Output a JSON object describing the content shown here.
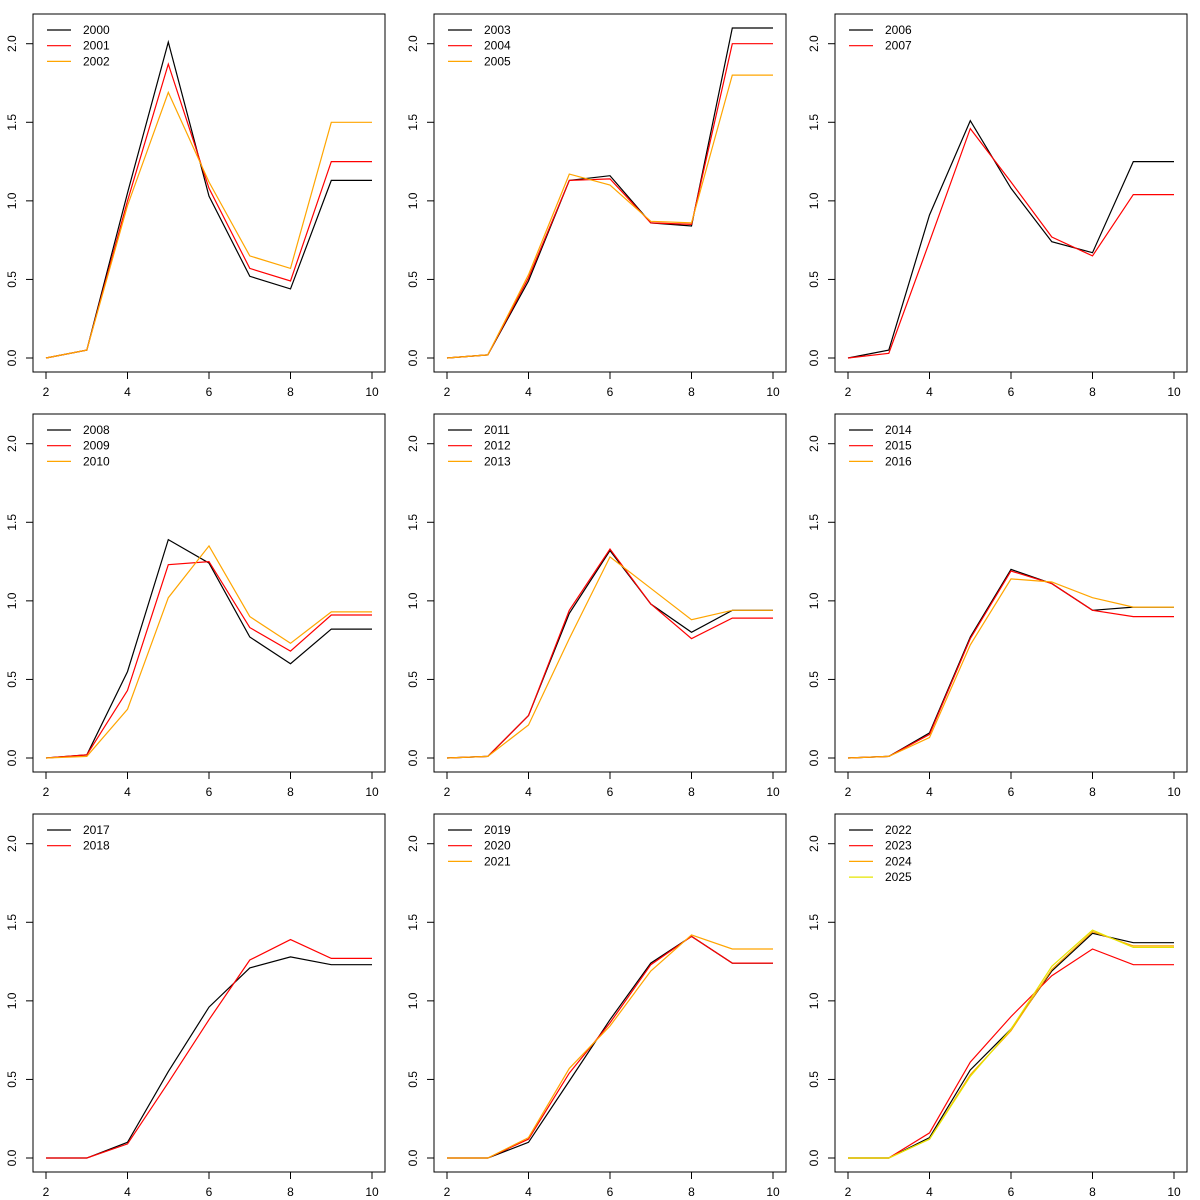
{
  "chart_data": [
    {
      "type": "line",
      "x": [
        2,
        3,
        4,
        5,
        6,
        7,
        8,
        9,
        10
      ],
      "xlim": [
        2,
        10
      ],
      "ylim": [
        0,
        2.1
      ],
      "xticks": [
        "2",
        "4",
        "6",
        "8",
        "10"
      ],
      "yticks": [
        "0.0",
        "0.5",
        "1.0",
        "1.5",
        "2.0"
      ],
      "legend_position": "top-left",
      "series": [
        {
          "name": "2000",
          "color": "#000000",
          "values": [
            0,
            0.05,
            1.05,
            2.01,
            1.03,
            0.52,
            0.44,
            1.13,
            1.13
          ]
        },
        {
          "name": "2001",
          "color": "#ff0000",
          "values": [
            0,
            0.05,
            1.0,
            1.87,
            1.08,
            0.57,
            0.49,
            1.25,
            1.25
          ]
        },
        {
          "name": "2002",
          "color": "#ffa500",
          "values": [
            0,
            0.05,
            0.97,
            1.69,
            1.12,
            0.65,
            0.57,
            1.5,
            1.5
          ]
        }
      ]
    },
    {
      "type": "line",
      "x": [
        2,
        3,
        4,
        5,
        6,
        7,
        8,
        9,
        10
      ],
      "xlim": [
        2,
        10
      ],
      "ylim": [
        0,
        2.1
      ],
      "xticks": [
        "2",
        "4",
        "6",
        "8",
        "10"
      ],
      "yticks": [
        "0.0",
        "0.5",
        "1.0",
        "1.5",
        "2.0"
      ],
      "legend_position": "top-left",
      "series": [
        {
          "name": "2003",
          "color": "#000000",
          "values": [
            0,
            0.02,
            0.49,
            1.13,
            1.16,
            0.86,
            0.84,
            2.1,
            2.1
          ]
        },
        {
          "name": "2004",
          "color": "#ff0000",
          "values": [
            0,
            0.02,
            0.51,
            1.13,
            1.14,
            0.86,
            0.85,
            2.0,
            2.0
          ]
        },
        {
          "name": "2005",
          "color": "#ffa500",
          "values": [
            0,
            0.02,
            0.53,
            1.17,
            1.1,
            0.87,
            0.86,
            1.8,
            1.8
          ]
        }
      ]
    },
    {
      "type": "line",
      "x": [
        2,
        3,
        4,
        5,
        6,
        7,
        8,
        9,
        10
      ],
      "xlim": [
        2,
        10
      ],
      "ylim": [
        0,
        2.1
      ],
      "xticks": [
        "2",
        "4",
        "6",
        "8",
        "10"
      ],
      "yticks": [
        "0.0",
        "0.5",
        "1.0",
        "1.5",
        "2.0"
      ],
      "legend_position": "top-left",
      "series": [
        {
          "name": "2006",
          "color": "#000000",
          "values": [
            0,
            0.05,
            0.91,
            1.51,
            1.08,
            0.74,
            0.67,
            1.25,
            1.25
          ]
        },
        {
          "name": "2007",
          "color": "#ff0000",
          "values": [
            0,
            0.03,
            0.74,
            1.46,
            1.12,
            0.77,
            0.65,
            1.04,
            1.04
          ]
        }
      ]
    },
    {
      "type": "line",
      "x": [
        2,
        3,
        4,
        5,
        6,
        7,
        8,
        9,
        10
      ],
      "xlim": [
        2,
        10
      ],
      "ylim": [
        0,
        2.1
      ],
      "xticks": [
        "2",
        "4",
        "6",
        "8",
        "10"
      ],
      "yticks": [
        "0.0",
        "0.5",
        "1.0",
        "1.5",
        "2.0"
      ],
      "legend_position": "top-left",
      "series": [
        {
          "name": "2008",
          "color": "#000000",
          "values": [
            0,
            0.02,
            0.55,
            1.39,
            1.24,
            0.77,
            0.6,
            0.82,
            0.82
          ]
        },
        {
          "name": "2009",
          "color": "#ff0000",
          "values": [
            0,
            0.02,
            0.43,
            1.23,
            1.25,
            0.83,
            0.68,
            0.91,
            0.91
          ]
        },
        {
          "name": "2010",
          "color": "#ffa500",
          "values": [
            0,
            0.01,
            0.31,
            1.02,
            1.35,
            0.9,
            0.73,
            0.93,
            0.93
          ]
        }
      ]
    },
    {
      "type": "line",
      "x": [
        2,
        3,
        4,
        5,
        6,
        7,
        8,
        9,
        10
      ],
      "xlim": [
        2,
        10
      ],
      "ylim": [
        0,
        2.1
      ],
      "xticks": [
        "2",
        "4",
        "6",
        "8",
        "10"
      ],
      "yticks": [
        "0.0",
        "0.5",
        "1.0",
        "1.5",
        "2.0"
      ],
      "legend_position": "top-left",
      "series": [
        {
          "name": "2011",
          "color": "#000000",
          "values": [
            0,
            0.01,
            0.27,
            0.92,
            1.32,
            0.98,
            0.8,
            0.94,
            0.94
          ]
        },
        {
          "name": "2012",
          "color": "#ff0000",
          "values": [
            0,
            0.01,
            0.27,
            0.94,
            1.33,
            0.98,
            0.76,
            0.89,
            0.89
          ]
        },
        {
          "name": "2013",
          "color": "#ffa500",
          "values": [
            0,
            0.01,
            0.21,
            0.76,
            1.28,
            1.08,
            0.88,
            0.94,
            0.94
          ]
        }
      ]
    },
    {
      "type": "line",
      "x": [
        2,
        3,
        4,
        5,
        6,
        7,
        8,
        9,
        10
      ],
      "xlim": [
        2,
        10
      ],
      "ylim": [
        0,
        2.1
      ],
      "xticks": [
        "2",
        "4",
        "6",
        "8",
        "10"
      ],
      "yticks": [
        "0.0",
        "0.5",
        "1.0",
        "1.5",
        "2.0"
      ],
      "legend_position": "top-left",
      "series": [
        {
          "name": "2014",
          "color": "#000000",
          "values": [
            0,
            0.01,
            0.16,
            0.77,
            1.2,
            1.11,
            0.94,
            0.96,
            0.96
          ]
        },
        {
          "name": "2015",
          "color": "#ff0000",
          "values": [
            0,
            0.01,
            0.15,
            0.76,
            1.19,
            1.11,
            0.94,
            0.9,
            0.9
          ]
        },
        {
          "name": "2016",
          "color": "#ffa500",
          "values": [
            0,
            0.01,
            0.13,
            0.72,
            1.14,
            1.12,
            1.02,
            0.96,
            0.96
          ]
        }
      ]
    },
    {
      "type": "line",
      "x": [
        2,
        3,
        4,
        5,
        6,
        7,
        8,
        9,
        10
      ],
      "xlim": [
        2,
        10
      ],
      "ylim": [
        0,
        2.1
      ],
      "xticks": [
        "2",
        "4",
        "6",
        "8",
        "10"
      ],
      "yticks": [
        "0.0",
        "0.5",
        "1.0",
        "1.5",
        "2.0"
      ],
      "legend_position": "top-left",
      "series": [
        {
          "name": "2017",
          "color": "#000000",
          "values": [
            0,
            0,
            0.1,
            0.55,
            0.96,
            1.21,
            1.28,
            1.23,
            1.23
          ]
        },
        {
          "name": "2018",
          "color": "#ff0000",
          "values": [
            0,
            0,
            0.09,
            0.48,
            0.88,
            1.26,
            1.39,
            1.27,
            1.27
          ]
        }
      ]
    },
    {
      "type": "line",
      "x": [
        2,
        3,
        4,
        5,
        6,
        7,
        8,
        9,
        10
      ],
      "xlim": [
        2,
        10
      ],
      "ylim": [
        0,
        2.1
      ],
      "xticks": [
        "2",
        "4",
        "6",
        "8",
        "10"
      ],
      "yticks": [
        "0.0",
        "0.5",
        "1.0",
        "1.5",
        "2.0"
      ],
      "legend_position": "top-left",
      "series": [
        {
          "name": "2019",
          "color": "#000000",
          "values": [
            0,
            0,
            0.1,
            0.49,
            0.88,
            1.24,
            1.41,
            1.24,
            1.24
          ]
        },
        {
          "name": "2020",
          "color": "#ff0000",
          "values": [
            0,
            0,
            0.12,
            0.54,
            0.86,
            1.23,
            1.41,
            1.24,
            1.24
          ]
        },
        {
          "name": "2021",
          "color": "#ffa500",
          "values": [
            0,
            0,
            0.13,
            0.57,
            0.84,
            1.19,
            1.42,
            1.33,
            1.33
          ]
        }
      ]
    },
    {
      "type": "line",
      "x": [
        2,
        3,
        4,
        5,
        6,
        7,
        8,
        9,
        10
      ],
      "xlim": [
        2,
        10
      ],
      "ylim": [
        0,
        2.1
      ],
      "xticks": [
        "2",
        "4",
        "6",
        "8",
        "10"
      ],
      "yticks": [
        "0.0",
        "0.5",
        "1.0",
        "1.5",
        "2.0"
      ],
      "legend_position": "top-left",
      "series": [
        {
          "name": "2022",
          "color": "#000000",
          "values": [
            0,
            0,
            0.13,
            0.56,
            0.82,
            1.19,
            1.43,
            1.37,
            1.37
          ]
        },
        {
          "name": "2023",
          "color": "#ff0000",
          "values": [
            0,
            0,
            0.16,
            0.61,
            0.9,
            1.16,
            1.33,
            1.23,
            1.23
          ]
        },
        {
          "name": "2024",
          "color": "#ffa500",
          "values": [
            0,
            0,
            0.12,
            0.53,
            0.81,
            1.2,
            1.44,
            1.35,
            1.35
          ]
        },
        {
          "name": "2025",
          "color": "#e5e500",
          "values": [
            0,
            0,
            0.12,
            0.52,
            0.82,
            1.22,
            1.45,
            1.34,
            1.34
          ]
        }
      ]
    }
  ]
}
